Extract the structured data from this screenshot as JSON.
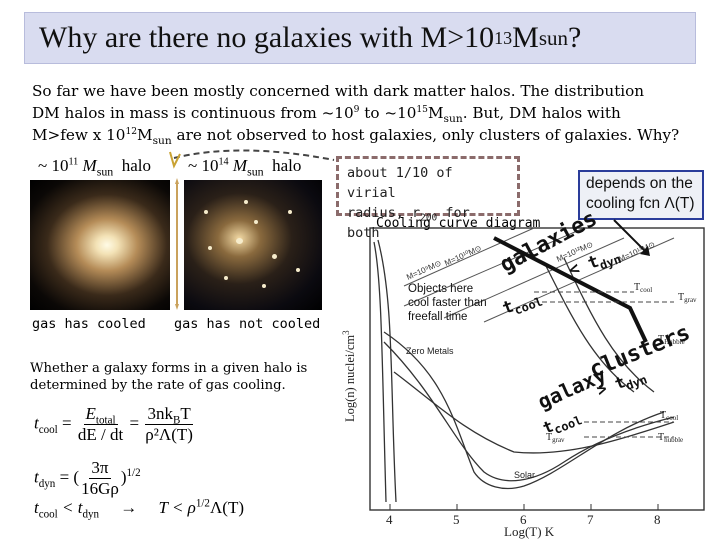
{
  "title": {
    "prefix": "Why are there no galaxies with M>10",
    "exp": "13",
    "mid": "M",
    "sub": "sun",
    "suffix": " ?"
  },
  "intro": {
    "line1": "So far we have been mostly concerned with dark matter halos. The distribution",
    "line2_a": "DM halos in mass is continuous from  ~10",
    "line2_exp1": "9",
    "line2_b": "  to ~10",
    "line2_exp2": "15",
    "line2_c": "M",
    "line2_sub": "sun",
    "line2_d": ".  But, DM halos with",
    "line3_a": "M>few x 10",
    "line3_exp": "12",
    "line3_b": "M",
    "line3_sub": "sun",
    "line3_c": "  are not observed to host galaxies, only clusters of galaxies. Why?"
  },
  "halo_left": {
    "prefix": "~ 10",
    "exp": "11",
    "m": "M",
    "sub": "sun",
    "suffix": "halo"
  },
  "halo_right": {
    "prefix": "~ 10",
    "exp": "14",
    "m": "M",
    "sub": "sun",
    "suffix": "halo"
  },
  "captions": {
    "left": "gas has cooled",
    "right": "gas has not cooled"
  },
  "body_text": "Whether a galaxy forms in a given halo is determined by the rate of gas cooling.",
  "dashed_box": {
    "line1": "about 1/10 of virial",
    "line2_a": "radius, r",
    "line2_sub": "200",
    "line2_b": " for both"
  },
  "cooling_caption": "Cooling curve diagram",
  "depends_box": {
    "line1": "depends on the",
    "line2": "cooling fcn Λ(T)"
  },
  "overlay": {
    "galaxies": "galaxies",
    "tdyn_lt": "< t",
    "tdyn_lt_sub": "dyn",
    "tcool_1": "t",
    "tcool_1_sub": "cool",
    "clusters": "clusters",
    "galaxy": "galaxy",
    "tdyn_gt": "> t",
    "tdyn_gt_sub": "dyn",
    "tcool_2": "t",
    "tcool_2_sub": "cool"
  },
  "plot": {
    "ylabel": "Log(n)  nuclei/cm",
    "ylabel_exp": "3",
    "xlabel": "Log(T)  K",
    "x_ticks": [
      "4",
      "5",
      "6",
      "7",
      "8"
    ],
    "objects_label_1": "Objects here",
    "objects_label_2": "cool faster than",
    "objects_label_3": "freefall time",
    "tcool_label": "T",
    "tcool_label_sub": "cool",
    "tgrav_label": "T",
    "tgrav_label_sub": "grav",
    "tcool_label2": "T",
    "tcool_label2_sub": "cool",
    "thubble_label": "T",
    "thubble_label_sub": "Hubble",
    "tgrav_label2": "T",
    "tgrav_label2_sub": "grav",
    "thubble_label2": "T",
    "thubble_label2_sub": "hubble",
    "zero_metals": "Zero Metals",
    "solar": "Solar",
    "m_labels": [
      "M=10⁹M⊙",
      "M=10¹⁰M⊙",
      "M=10¹²M⊙",
      "M=10¹³M⊙"
    ]
  },
  "equations": {
    "eq1_lhs": "t",
    "eq1_lhs_sub": "cool",
    "eq1_num": "E",
    "eq1_num_sub": "total",
    "eq1_den": "dE / dt",
    "eq1_num2": "3nk",
    "eq1_num2_sub": "B",
    "eq1_num2_b": "T",
    "eq1_den2": "ρ²Λ(T)",
    "eq2_lhs": "t",
    "eq2_lhs_sub": "dyn",
    "eq2_rhs_a": "(",
    "eq2_num": "3π",
    "eq2_den": "16Gρ",
    "eq2_rhs_b": ")",
    "eq2_exp": "1/2",
    "eq3_a": "t",
    "eq3_a_sub": "cool",
    "eq3_b": " < t",
    "eq3_b_sub": "dyn",
    "eq3_arrow": "→",
    "eq3_c": "T < ρ",
    "eq3_c_sup": "1/2",
    "eq3_d": "Λ(T)"
  }
}
